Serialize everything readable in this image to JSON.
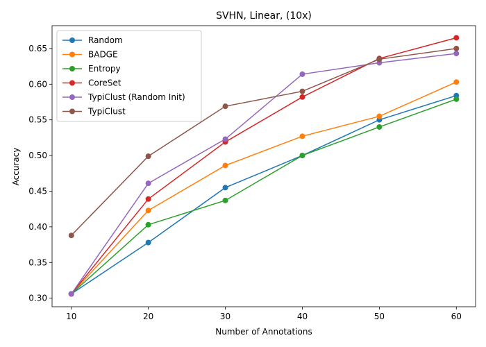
{
  "chart_data": {
    "type": "line",
    "title": "SVHN, Linear, (10x)",
    "xlabel": "Number of Annotations",
    "ylabel": "Accuracy",
    "x": [
      10,
      20,
      30,
      40,
      50,
      60
    ],
    "xticks": [
      "10",
      "20",
      "30",
      "40",
      "50",
      "60"
    ],
    "yticks": [
      "0.30",
      "0.35",
      "0.40",
      "0.45",
      "0.50",
      "0.55",
      "0.60",
      "0.65"
    ],
    "xlim": [
      7.5,
      62.5
    ],
    "ylim": [
      0.288,
      0.682
    ],
    "grid": false,
    "legend_position": "upper-left",
    "series": [
      {
        "name": "Random",
        "color": "#1f77b4",
        "values": [
          0.306,
          0.378,
          0.455,
          0.5,
          0.55,
          0.584
        ]
      },
      {
        "name": "BADGE",
        "color": "#ff7f0e",
        "values": [
          0.306,
          0.423,
          0.486,
          0.527,
          0.555,
          0.603
        ]
      },
      {
        "name": "Entropy",
        "color": "#2ca02c",
        "values": [
          0.306,
          0.403,
          0.437,
          0.5,
          0.54,
          0.579
        ]
      },
      {
        "name": "CoreSet",
        "color": "#d62728",
        "values": [
          0.306,
          0.439,
          0.519,
          0.582,
          0.636,
          0.665
        ]
      },
      {
        "name": "TypiClust (Random Init)",
        "color": "#9467bd",
        "values": [
          0.306,
          0.461,
          0.523,
          0.614,
          0.63,
          0.643
        ]
      },
      {
        "name": "TypiClust",
        "color": "#8c564b",
        "values": [
          0.388,
          0.499,
          0.569,
          0.59,
          0.635,
          0.65
        ]
      }
    ]
  }
}
